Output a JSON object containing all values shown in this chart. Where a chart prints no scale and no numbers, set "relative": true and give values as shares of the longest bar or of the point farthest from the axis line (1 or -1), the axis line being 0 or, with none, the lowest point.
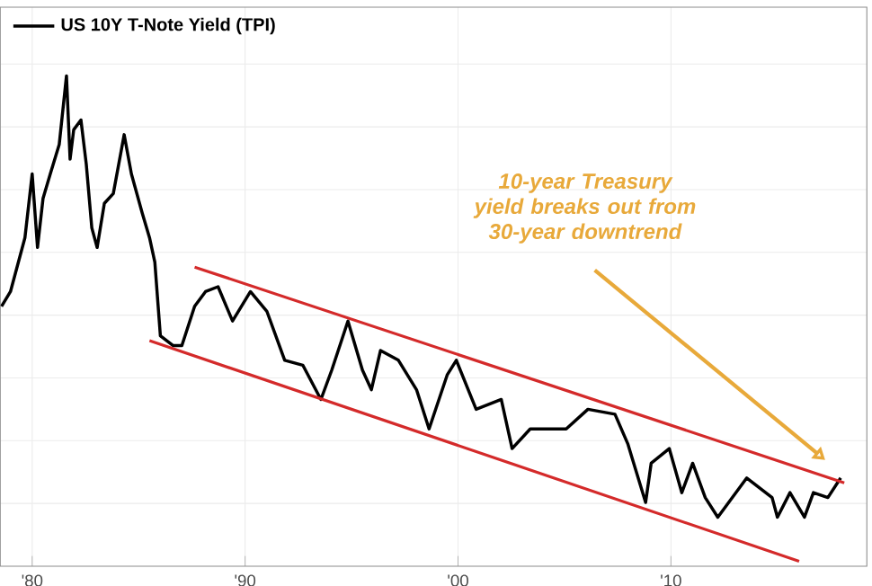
{
  "chart_data": {
    "type": "line",
    "relative": true,
    "grid": true,
    "legend": "top left",
    "xlim": [
      1978.5,
      2019.2
    ],
    "xticks": [
      {
        "value": 1980,
        "label": "'80"
      },
      {
        "value": 1990,
        "label": "'90"
      },
      {
        "value": 2000,
        "label": "'00"
      },
      {
        "value": 2010,
        "label": "'10"
      }
    ],
    "series": [
      {
        "name": "US 10Y T-Note Yield (TPI)",
        "color": "#000000",
        "x": [
          1978.56,
          1978.98,
          1979.66,
          1980.0,
          1980.25,
          1980.51,
          1980.85,
          1981.27,
          1981.61,
          1981.78,
          1981.95,
          1982.29,
          1982.54,
          1982.8,
          1983.05,
          1983.39,
          1983.81,
          1984.32,
          1984.66,
          1985.17,
          1985.51,
          1985.76,
          1986.02,
          1986.61,
          1987.03,
          1987.63,
          1988.14,
          1988.73,
          1989.41,
          1990.25,
          1991.02,
          1991.86,
          1992.71,
          1993.56,
          1994.07,
          1994.83,
          1995.51,
          1995.93,
          1996.36,
          1997.2,
          1998.05,
          1998.64,
          1999.49,
          1999.92,
          2000.85,
          2002.03,
          2002.54,
          2003.39,
          2004.24,
          2005.08,
          2006.1,
          2007.37,
          2007.97,
          2008.81,
          2009.07,
          2009.92,
          2010.51,
          2011.02,
          2011.61,
          2012.2,
          2013.56,
          2014.75,
          2015.0,
          2015.59,
          2016.27,
          2016.69,
          2017.37,
          2017.97
        ],
        "values": [
          0.53,
          0.56,
          0.67,
          0.8,
          0.65,
          0.75,
          0.8,
          0.86,
          1.0,
          0.83,
          0.89,
          0.91,
          0.82,
          0.69,
          0.65,
          0.74,
          0.76,
          0.88,
          0.8,
          0.72,
          0.67,
          0.62,
          0.47,
          0.45,
          0.45,
          0.53,
          0.56,
          0.57,
          0.5,
          0.56,
          0.52,
          0.42,
          0.41,
          0.34,
          0.4,
          0.5,
          0.4,
          0.36,
          0.44,
          0.42,
          0.36,
          0.28,
          0.39,
          0.42,
          0.32,
          0.34,
          0.24,
          0.28,
          0.28,
          0.28,
          0.32,
          0.31,
          0.25,
          0.13,
          0.21,
          0.24,
          0.15,
          0.21,
          0.14,
          0.1,
          0.18,
          0.14,
          0.1,
          0.15,
          0.1,
          0.15,
          0.14,
          0.18
        ]
      },
      {
        "type": "line",
        "color": "#d42a2a",
        "x": [
          1987.63,
          2018.14
        ],
        "values": [
          0.61,
          0.17
        ]
      },
      {
        "type": "line",
        "color": "#d42a2a",
        "x": [
          1985.51,
          2016.02
        ],
        "values": [
          0.46,
          0.01
        ]
      }
    ],
    "annotations": [
      "10-year Treasury yield breaks out from 30-year downtrend"
    ]
  }
}
